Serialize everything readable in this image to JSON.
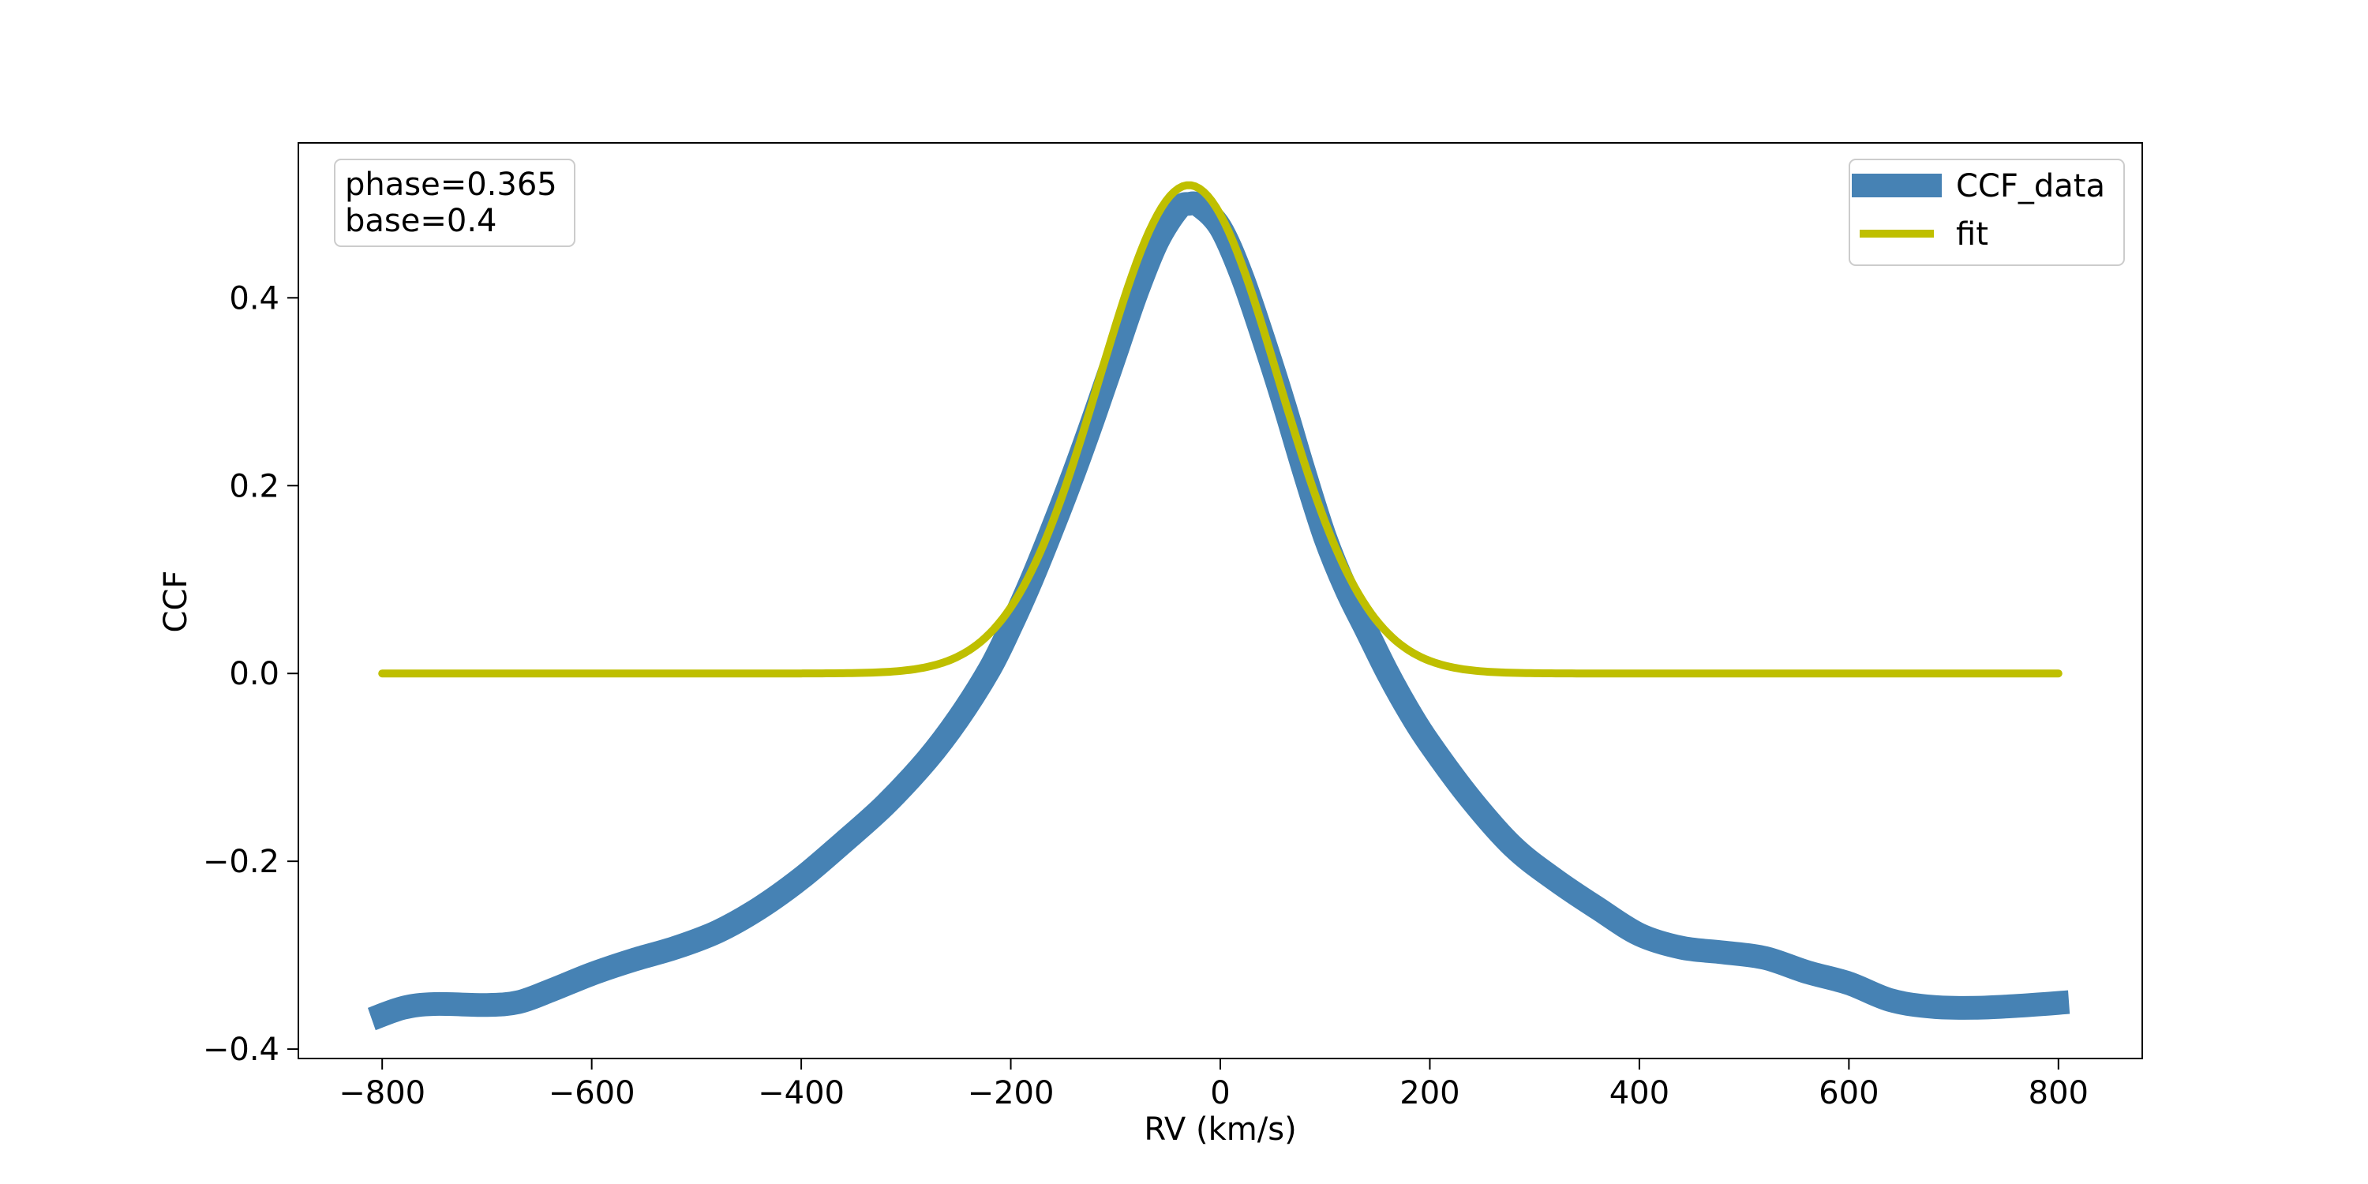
{
  "chart_data": {
    "type": "line",
    "xlabel": "RV (km/s)",
    "ylabel": "CCF",
    "xlim": [
      -880,
      880
    ],
    "ylim": [
      -0.41,
      0.565
    ],
    "x_ticks": [
      -800,
      -600,
      -400,
      -200,
      0,
      200,
      400,
      600,
      800
    ],
    "x_tick_labels": [
      "−800",
      "−600",
      "−400",
      "−200",
      "0",
      "200",
      "400",
      "600",
      "800"
    ],
    "y_ticks": [
      -0.4,
      -0.2,
      0.0,
      0.2,
      0.4
    ],
    "y_tick_labels": [
      "−0.4",
      "−0.2",
      "0.0",
      "0.2",
      "0.4"
    ],
    "grid": false,
    "legend_position": "top-right",
    "annotation": [
      "phase=0.365",
      "base=0.4"
    ],
    "series": [
      {
        "name": "CCF_data",
        "color": "#4682B4",
        "style": "thick-line",
        "x": [
          -810,
          -780,
          -750,
          -700,
          -670,
          -640,
          -600,
          -560,
          -520,
          -480,
          -440,
          -400,
          -360,
          -320,
          -280,
          -250,
          -220,
          -200,
          -180,
          -160,
          -140,
          -120,
          -100,
          -80,
          -60,
          -40,
          -30,
          -20,
          0,
          20,
          40,
          60,
          80,
          100,
          120,
          140,
          160,
          180,
          200,
          240,
          280,
          320,
          360,
          400,
          440,
          480,
          520,
          560,
          600,
          640,
          680,
          720,
          760,
          810
        ],
        "values": [
          -0.368,
          -0.356,
          -0.352,
          -0.353,
          -0.35,
          -0.338,
          -0.32,
          -0.305,
          -0.292,
          -0.275,
          -0.25,
          -0.218,
          -0.18,
          -0.14,
          -0.092,
          -0.048,
          0.005,
          0.05,
          0.1,
          0.155,
          0.213,
          0.275,
          0.34,
          0.405,
          0.46,
          0.495,
          0.5,
          0.498,
          0.475,
          0.425,
          0.36,
          0.29,
          0.215,
          0.145,
          0.09,
          0.045,
          0.0,
          -0.04,
          -0.075,
          -0.135,
          -0.185,
          -0.22,
          -0.25,
          -0.278,
          -0.292,
          -0.297,
          -0.303,
          -0.318,
          -0.33,
          -0.348,
          -0.355,
          -0.356,
          -0.354,
          -0.35
        ]
      },
      {
        "name": "fit",
        "color": "#BFBF00",
        "style": "line",
        "model": "gaussian",
        "amplitude": 0.52,
        "center": -30,
        "sigma": 85,
        "x_range": [
          -800,
          800
        ]
      }
    ]
  }
}
